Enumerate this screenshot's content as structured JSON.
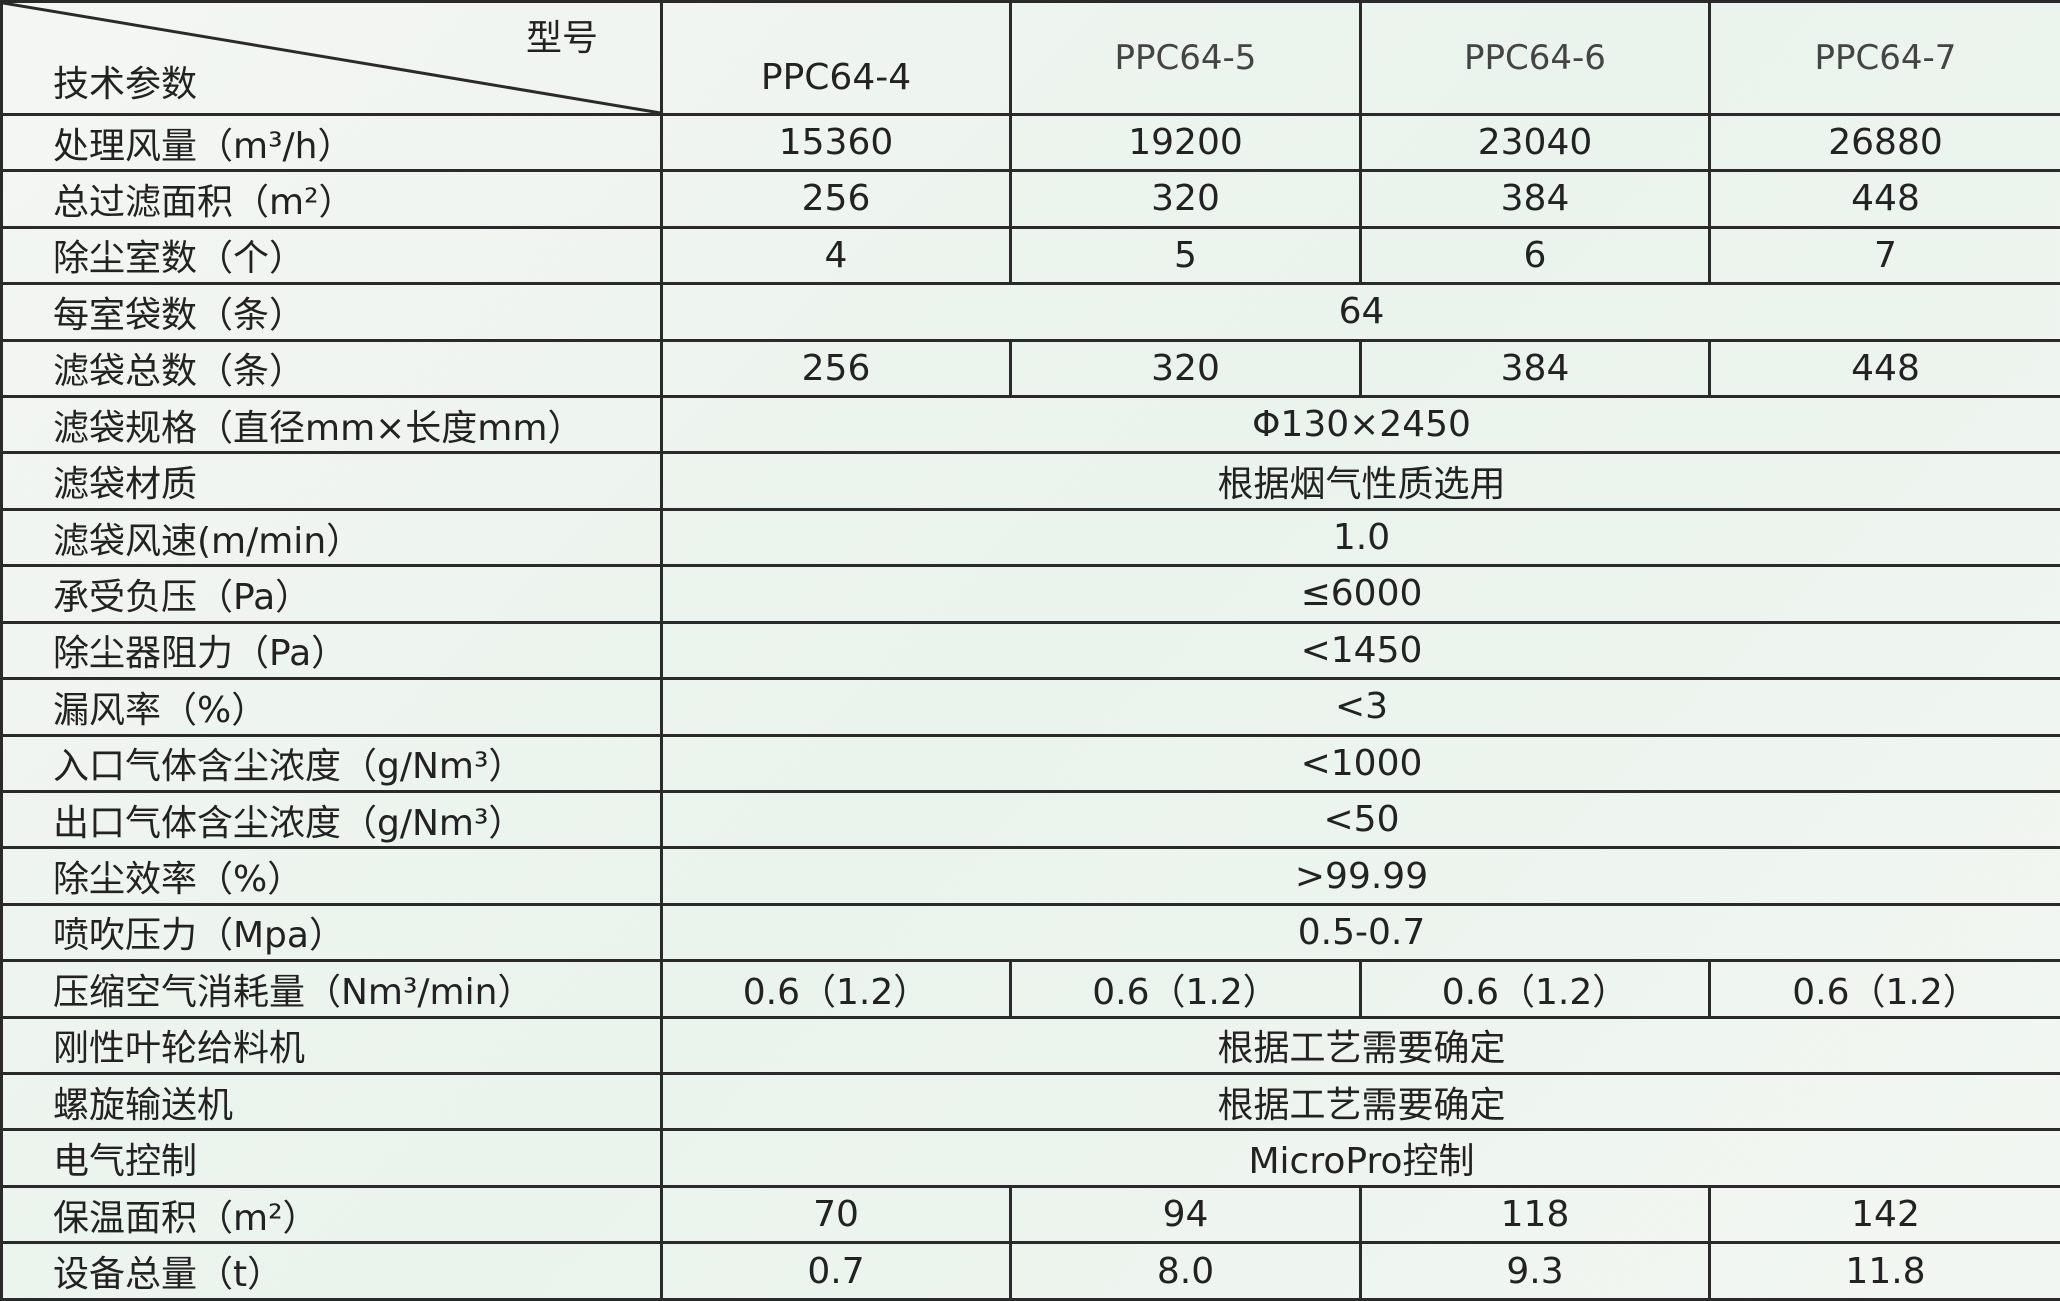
{
  "header": {
    "corner_top": "型号",
    "corner_bottom": "技术参数",
    "models": [
      "PPC64-4",
      "PPC64-5",
      "PPC64-6",
      "PPC64-7"
    ]
  },
  "rows": [
    {
      "label": "处理风量（m³/h）",
      "values": [
        "15360",
        "19200",
        "23040",
        "26880"
      ]
    },
    {
      "label": "总过滤面积（m²）",
      "values": [
        "256",
        "320",
        "384",
        "448"
      ]
    },
    {
      "label": "除尘室数（个）",
      "values": [
        "4",
        "5",
        "6",
        "7"
      ]
    },
    {
      "label": "每室袋数（条）",
      "merged": "64"
    },
    {
      "label": "滤袋总数（条）",
      "values": [
        "256",
        "320",
        "384",
        "448"
      ]
    },
    {
      "label": "滤袋规格（直径mm×长度mm）",
      "merged": "Φ130×2450"
    },
    {
      "label": "滤袋材质",
      "merged": "根据烟气性质选用"
    },
    {
      "label": "滤袋风速(m/min）",
      "merged": "1.0"
    },
    {
      "label": "承受负压（Pa）",
      "merged": "≤6000"
    },
    {
      "label": "除尘器阻力（Pa）",
      "merged": "<1450"
    },
    {
      "label": "漏风率（%）",
      "merged": "<3"
    },
    {
      "label": "入口气体含尘浓度（g/Nm³）",
      "merged": "<1000"
    },
    {
      "label": "出口气体含尘浓度（g/Nm³）",
      "merged": "<50"
    },
    {
      "label": "除尘效率（%）",
      "merged": ">99.99"
    },
    {
      "label": "喷吹压力（Mpa）",
      "merged": "0.5-0.7"
    },
    {
      "label": "压缩空气消耗量（Nm³/min）",
      "values": [
        "0.6（1.2）",
        "0.6（1.2）",
        "0.6（1.2）",
        "0.6（1.2）"
      ]
    },
    {
      "label": "刚性叶轮给料机",
      "merged": "根据工艺需要确定"
    },
    {
      "label": "螺旋输送机",
      "merged": "根据工艺需要确定"
    },
    {
      "label": "电气控制",
      "merged": "MicroPro控制"
    },
    {
      "label": "保温面积（m²）",
      "values": [
        "70",
        "94",
        "118",
        "142"
      ]
    },
    {
      "label": "设备总量（t）",
      "values": [
        "0.7",
        "8.0",
        "9.3",
        "11.8"
      ]
    }
  ]
}
